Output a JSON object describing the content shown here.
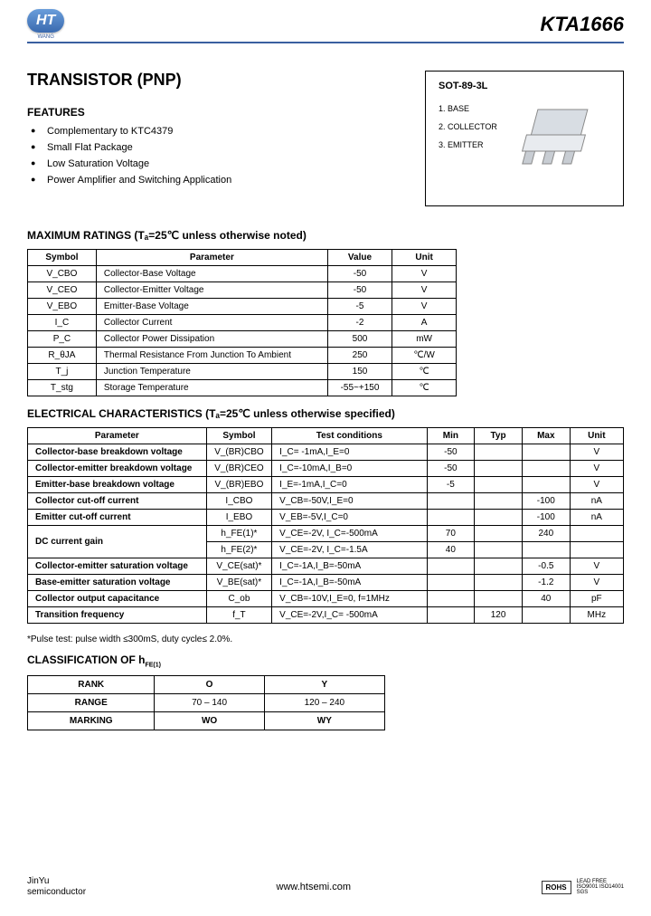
{
  "header": {
    "logo_text": "HT",
    "logo_sub": "WANG",
    "part_number": "KTA1666"
  },
  "title": "TRANSISTOR  (PNP)",
  "features_heading": "FEATURES",
  "features": [
    "Complementary to KTC4379",
    "Small Flat Package",
    "Low Saturation Voltage",
    "Power Amplifier and Switching Application"
  ],
  "package": {
    "title": "SOT-89-3L",
    "pins": [
      "1. BASE",
      "2. COLLECTOR",
      "3. EMITTER"
    ]
  },
  "max_ratings": {
    "heading": "MAXIMUM RATINGS (Tₐ=25℃ unless otherwise noted)",
    "headers": [
      "Symbol",
      "Parameter",
      "Value",
      "Unit"
    ],
    "rows": [
      [
        "V_CBO",
        "Collector-Base Voltage",
        "-50",
        "V"
      ],
      [
        "V_CEO",
        "Collector-Emitter Voltage",
        "-50",
        "V"
      ],
      [
        "V_EBO",
        "Emitter-Base Voltage",
        "-5",
        "V"
      ],
      [
        "I_C",
        "Collector Current",
        "-2",
        "A"
      ],
      [
        "P_C",
        "Collector Power Dissipation",
        "500",
        "mW"
      ],
      [
        "R_θJA",
        "Thermal Resistance From Junction To Ambient",
        "250",
        "℃/W"
      ],
      [
        "T_j",
        "Junction Temperature",
        "150",
        "℃"
      ],
      [
        "T_stg",
        "Storage Temperature",
        "-55~+150",
        "℃"
      ]
    ]
  },
  "electrical": {
    "heading": "ELECTRICAL CHARACTERISTICS (Tₐ=25℃ unless otherwise specified)",
    "headers": [
      "Parameter",
      "Symbol",
      "Test    conditions",
      "Min",
      "Typ",
      "Max",
      "Unit"
    ],
    "rows": [
      {
        "param": "Collector-base breakdown voltage",
        "symbol": "V_(BR)CBO",
        "cond": "I_C= -1mA,I_E=0",
        "min": "-50",
        "typ": "",
        "max": "",
        "unit": "V"
      },
      {
        "param": "Collector-emitter breakdown voltage",
        "symbol": "V_(BR)CEO",
        "cond": "I_C=-10mA,I_B=0",
        "min": "-50",
        "typ": "",
        "max": "",
        "unit": "V"
      },
      {
        "param": "Emitter-base breakdown voltage",
        "symbol": "V_(BR)EBO",
        "cond": "I_E=-1mA,I_C=0",
        "min": "-5",
        "typ": "",
        "max": "",
        "unit": "V"
      },
      {
        "param": "Collector cut-off current",
        "symbol": "I_CBO",
        "cond": "V_CB=-50V,I_E=0",
        "min": "",
        "typ": "",
        "max": "-100",
        "unit": "nA"
      },
      {
        "param": "Emitter cut-off current",
        "symbol": "I_EBO",
        "cond": "V_EB=-5V,I_C=0",
        "min": "",
        "typ": "",
        "max": "-100",
        "unit": "nA"
      }
    ],
    "dc_gain": {
      "param": "DC current gain",
      "r1": {
        "symbol": "h_FE(1)*",
        "cond": "V_CE=-2V, I_C=-500mA",
        "min": "70",
        "typ": "",
        "max": "240",
        "unit": ""
      },
      "r2": {
        "symbol": "h_FE(2)*",
        "cond": "V_CE=-2V, I_C=-1.5A",
        "min": "40",
        "typ": "",
        "max": "",
        "unit": ""
      }
    },
    "tail_rows": [
      {
        "param": "Collector-emitter saturation voltage",
        "symbol": "V_CE(sat)*",
        "cond": "I_C=-1A,I_B=-50mA",
        "min": "",
        "typ": "",
        "max": "-0.5",
        "unit": "V"
      },
      {
        "param": "Base-emitter saturation voltage",
        "symbol": "V_BE(sat)*",
        "cond": "I_C=-1A,I_B=-50mA",
        "min": "",
        "typ": "",
        "max": "-1.2",
        "unit": "V"
      },
      {
        "param": "Collector output capacitance",
        "symbol": "C_ob",
        "cond": "V_CB=-10V,I_E=0, f=1MHz",
        "min": "",
        "typ": "",
        "max": "40",
        "unit": "pF"
      },
      {
        "param": "Transition frequency",
        "symbol": "f_T",
        "cond": "V_CE=-2V,I_C= -500mA",
        "min": "",
        "typ": "120",
        "max": "",
        "unit": "MHz"
      }
    ],
    "note": "*Pulse test: pulse width ≤300mS, duty cycle≤ 2.0%."
  },
  "classification": {
    "heading": "CLASSIFICATION OF h_FE(1)",
    "headers": [
      "RANK",
      "O",
      "Y"
    ],
    "range_label": "RANGE",
    "range": [
      "70 – 140",
      "120 – 240"
    ],
    "marking_label": "MARKING",
    "marking": [
      "WO",
      "WY"
    ]
  },
  "footer": {
    "left_top": "JinYu",
    "left_bottom": "semiconductor",
    "center": "www.htsemi.com",
    "rohs": "ROHS",
    "cert1": "LEAD FREE",
    "cert2": "ISO9001 ISO14001",
    "cert3": "SGS"
  }
}
